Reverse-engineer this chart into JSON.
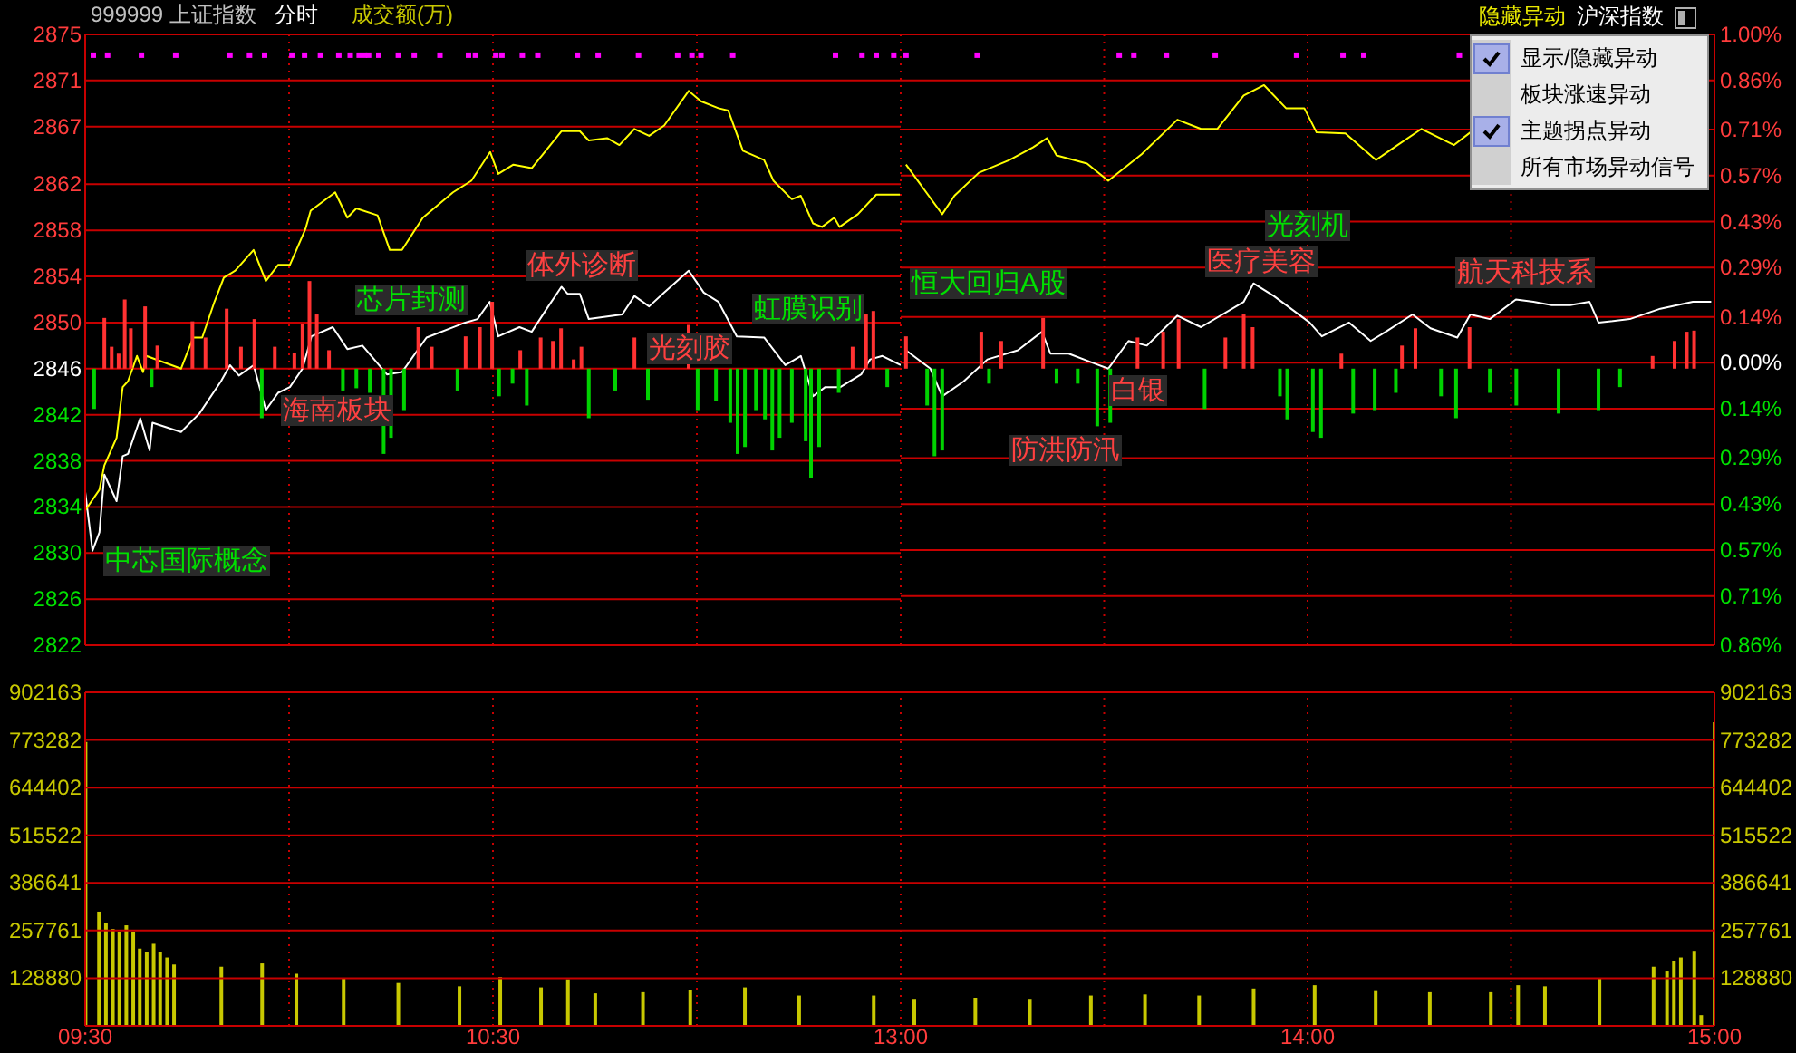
{
  "chart_data": [
    {
      "type": "line",
      "title": "999999 上证指数",
      "subtitle": "分时",
      "xlim": [
        9.5,
        11.5
      ],
      "xticks": [
        {
          "value": 9.5,
          "label": null
        },
        {
          "value": 10,
          "label": null
        },
        {
          "value": 10.5,
          "label": null
        },
        {
          "value": 11,
          "label": null
        },
        {
          "value": 11.5,
          "label": null
        }
      ],
      "ylim": [
        2822,
        2875
      ],
      "yticks": [
        2875,
        2871,
        2867,
        2862,
        2858,
        2854,
        2850,
        2846,
        2842,
        2838,
        2834,
        2830,
        2826,
        2822
      ],
      "tick_labels": "y",
      "grid": true,
      "series": [
        {
          "color": "#ffffff",
          "x": [
            9.5,
            9.518,
            9.535,
            9.547,
            9.577,
            9.592,
            9.605,
            9.635,
            9.658,
            9.665,
            9.735,
            9.78,
            9.833,
            9.855,
            9.877,
            9.913,
            9.943,
            9.973,
            10.002,
            10.033,
            10.055,
            10.107,
            10.143,
            10.18,
            10.24,
            10.277,
            10.337,
            10.432,
            10.462,
            10.492,
            10.513,
            10.565,
            10.595,
            10.632,
            10.668,
            10.683,
            10.713,
            10.735,
            10.817,
            10.847,
            10.883,
            10.92,
            10.98,
            11.017,
            11.053,
            11.098,
            11.165,
            11.217,
            11.255,
            11.285,
            11.315,
            11.352,
            11.403,
            11.425,
            11.455,
            11.5
          ],
          "values": [
            2835.3,
            2830.2,
            2831.8,
            2836.8,
            2834.5,
            2838.4,
            2838.6,
            2841.7,
            2838.9,
            2841.3,
            2840.5,
            2842.1,
            2844.9,
            2846.3,
            2845.4,
            2846.3,
            2842.4,
            2843.9,
            2844.4,
            2846,
            2848.8,
            2849.6,
            2847.7,
            2848,
            2845.5,
            2845.7,
            2848.7,
            2850,
            2850.3,
            2851.8,
            2848.8,
            2849.6,
            2849.2,
            2851.2,
            2853.1,
            2852.5,
            2852.5,
            2850.3,
            2850.7,
            2852.3,
            2851.4,
            2852.6,
            2854.5,
            2852.6,
            2851.8,
            2848.8,
            2848.7,
            2846.3,
            2847.1,
            2843.6,
            2844.4,
            2844.4,
            2845.5,
            2846.8,
            2847.1,
            2846.3
          ]
        },
        {
          "color": "#ffff00",
          "x": [
            9.5,
            9.535,
            9.547,
            9.577,
            9.592,
            9.605,
            9.627,
            9.642,
            9.65,
            9.735,
            9.765,
            9.787,
            9.817,
            9.84,
            9.868,
            9.913,
            9.943,
            9.973,
            10.002,
            10.04,
            10.053,
            10.113,
            10.143,
            10.165,
            10.217,
            10.247,
            10.277,
            10.328,
            10.402,
            10.447,
            10.493,
            10.513,
            10.55,
            10.595,
            10.668,
            10.713,
            10.735,
            10.78,
            10.81,
            10.847,
            10.883,
            10.92,
            10.98,
            11.01,
            11.053,
            11.077,
            11.113,
            11.165,
            11.188,
            11.233,
            11.255,
            11.285,
            11.307,
            11.337,
            11.35,
            11.395,
            11.44,
            11.498
          ],
          "values": [
            2833.7,
            2835.5,
            2837.6,
            2840,
            2844.4,
            2844.9,
            2847.1,
            2845.7,
            2847.1,
            2846,
            2848.7,
            2848.7,
            2851.8,
            2853.9,
            2854.5,
            2856.3,
            2853.6,
            2855,
            2855,
            2858.1,
            2859.7,
            2861.3,
            2859.1,
            2859.9,
            2859.3,
            2856.3,
            2856.3,
            2859.1,
            2861.3,
            2862.3,
            2864.8,
            2862.9,
            2863.7,
            2863.4,
            2866.6,
            2866.6,
            2865.8,
            2866,
            2865.4,
            2866.8,
            2866.2,
            2867.1,
            2870.1,
            2869.2,
            2868.6,
            2868.4,
            2864.9,
            2864.1,
            2862.3,
            2860.7,
            2861,
            2858.6,
            2858.3,
            2859.1,
            2858.3,
            2859.4,
            2861.1,
            2861.1
          ]
        },
        {
          "type": "bar",
          "color": "#ff3232",
          "x": [
            9.547,
            9.565,
            9.582,
            9.597,
            9.612,
            9.647,
            9.677,
            9.763,
            9.795,
            9.847,
            9.882,
            9.915,
            9.965,
            10.013,
            10.033,
            10.05,
            10.068,
            10.098,
            10.317,
            10.35,
            10.433,
            10.468,
            10.498,
            10.567,
            10.617,
            10.647,
            10.667,
            10.698,
            10.717,
            10.847,
            10.98,
            11.382,
            11.415,
            11.433
          ],
          "base": [
            2846,
            2846,
            2846,
            2846,
            2846,
            2846,
            2846,
            2846,
            2846,
            2846,
            2846,
            2846,
            2846,
            2846,
            2846,
            2846,
            2846,
            2846,
            2846,
            2846,
            2846,
            2846,
            2846,
            2846,
            2846,
            2846,
            2846,
            2846,
            2846,
            2846,
            2846,
            2846,
            2846,
            2846
          ],
          "values": [
            4.4,
            1.9,
            1.3,
            6,
            3.5,
            5.4,
            2,
            4.1,
            2.7,
            5.2,
            1.9,
            4.3,
            1.9,
            1.4,
            3.9,
            7.6,
            4.7,
            1.6,
            3.6,
            1.9,
            2.8,
            3.6,
            5.8,
            1.6,
            2.7,
            2.4,
            3.5,
            0.8,
            1.9,
            2.7,
            3.8,
            1.9,
            4.7,
            5
          ]
        },
        {
          "type": "bar",
          "color": "#00d200",
          "x": [
            9.522,
            9.663,
            9.933,
            10.132,
            10.165,
            10.198,
            10.232,
            10.25,
            10.282,
            10.413,
            10.515,
            10.548,
            10.583,
            10.735,
            10.8,
            10.88,
            11.002,
            11.047,
            11.082,
            11.1,
            11.118,
            11.145,
            11.167,
            11.185,
            11.203,
            11.233,
            11.267,
            11.28,
            11.3,
            11.348,
            11.467
          ],
          "base": [
            2846,
            2846,
            2846,
            2846,
            2846,
            2846,
            2846,
            2846,
            2846,
            2846,
            2846,
            2846,
            2846,
            2846,
            2846,
            2846,
            2846,
            2846,
            2846,
            2846,
            2846,
            2846,
            2846,
            2846,
            2846,
            2846,
            2846,
            2846,
            2846,
            2846,
            2846
          ],
          "values": [
            -3.5,
            -1.6,
            -4.3,
            -1.9,
            -1.7,
            -2.1,
            -7.4,
            -6,
            -3.6,
            -1.9,
            -2.4,
            -1.3,
            -3.2,
            -4.3,
            -1.9,
            -2.7,
            -3.6,
            -2.8,
            -4.7,
            -7.4,
            -6.8,
            -3.6,
            -4.4,
            -7.1,
            -6,
            -4.7,
            -6.3,
            -9.5,
            -6.8,
            -2.1,
            -1.6
          ]
        },
        {
          "type": "scatter",
          "color": "#ff00ff",
          "marker": "square",
          "x": [
            9.52,
            9.555,
            9.638,
            9.722,
            9.855,
            9.903,
            9.94,
            10.007,
            10.038,
            10.077,
            10.122,
            10.15,
            10.172,
            10.185,
            10.195,
            10.22,
            10.268,
            10.307,
            10.37,
            10.44,
            10.457,
            10.507,
            10.522,
            10.572,
            10.61,
            10.707,
            10.758,
            10.857,
            10.953,
            10.988,
            11.01,
            11.088,
            11.34,
            11.405,
            11.44,
            11.483
          ],
          "values": [
            2873.2,
            2873.2,
            2873.2,
            2873.2,
            2873.2,
            2873.2,
            2873.2,
            2873.2,
            2873.2,
            2873.2,
            2873.2,
            2873.2,
            2873.2,
            2873.2,
            2873.2,
            2873.2,
            2873.2,
            2873.2,
            2873.2,
            2873.2,
            2873.2,
            2873.2,
            2873.2,
            2873.2,
            2873.2,
            2873.2,
            2873.2,
            2873.2,
            2873.2,
            2873.2,
            2873.2,
            2873.2,
            2873.2,
            2873.2,
            2873.2,
            2873.2
          ]
        }
      ],
      "annotations": [
        "成交额(万)",
        "中芯国际概念",
        "海南板块",
        "芯片封测",
        "体外诊断",
        "光刻胶",
        "虹膜识别"
      ]
    },
    {
      "type": "line",
      "xlim": [
        13,
        15
      ],
      "xticks": [
        {
          "value": 13,
          "label": null
        },
        {
          "value": 13.5,
          "label": null
        },
        {
          "value": 14,
          "label": null
        },
        {
          "value": 14.5,
          "label": null
        },
        {
          "value": 15,
          "label": null
        }
      ],
      "ylim": [
        2822,
        2875
      ],
      "y2lim": [
        -0.86,
        1
      ],
      "y2ticks": [
        {
          "value": 1,
          "label": "1.00%"
        },
        {
          "value": 0.86,
          "label": "0.86%"
        },
        {
          "value": 0.71,
          "label": "0.71%"
        },
        {
          "value": 0.57,
          "label": "0.57%"
        },
        {
          "value": 0.43,
          "label": "0.43%"
        },
        {
          "value": 0.29,
          "label": "0.29%"
        },
        {
          "value": 0.14,
          "label": "0.14%"
        },
        {
          "value": 0,
          "label": "0.00%"
        },
        {
          "value": -0.14,
          "label": "0.14%"
        },
        {
          "value": -0.29,
          "label": "0.29%"
        },
        {
          "value": -0.43,
          "label": "0.43%"
        },
        {
          "value": -0.57,
          "label": "0.57%"
        },
        {
          "value": -0.71,
          "label": "0.71%"
        },
        {
          "value": -0.86,
          "label": "0.86%"
        }
      ],
      "tick_labels": "y",
      "grid": true,
      "series": [
        {
          "color": "#ffffff",
          "x": [
            13.013,
            13.073,
            13.102,
            13.155,
            13.213,
            13.288,
            13.347,
            13.368,
            13.413,
            13.472,
            13.51,
            13.56,
            13.605,
            13.68,
            13.738,
            13.843,
            13.867,
            13.917,
            14.005,
            14.035,
            14.102,
            14.155,
            14.192,
            14.258,
            14.302,
            14.368,
            14.4,
            14.448,
            14.512,
            14.555,
            14.6,
            14.645,
            14.693,
            14.715,
            14.792,
            14.867,
            14.947,
            14.992
          ],
          "values": [
            2847.6,
            2846,
            2843.6,
            2844.9,
            2846.8,
            2847.6,
            2849.2,
            2847.3,
            2847.3,
            2846.5,
            2846,
            2848.4,
            2848,
            2850.6,
            2849.6,
            2851.8,
            2853.4,
            2852.3,
            2850,
            2848.8,
            2850,
            2848.4,
            2849.2,
            2850.7,
            2849.5,
            2848.7,
            2850.7,
            2850.3,
            2852,
            2851.8,
            2851.5,
            2851.5,
            2851.8,
            2850,
            2850.3,
            2851.2,
            2851.8,
            2851.8
          ]
        },
        {
          "color": "#ffff00",
          "x": [
            13.013,
            13.102,
            13.132,
            13.192,
            13.267,
            13.325,
            13.36,
            13.383,
            13.458,
            13.51,
            13.592,
            13.68,
            13.738,
            13.778,
            13.843,
            13.893,
            13.947,
            13.992,
            14.022,
            14.093,
            14.168,
            14.213,
            14.28,
            14.36,
            14.4
          ],
          "values": [
            2863.7,
            2859.4,
            2861,
            2863,
            2864.1,
            2865.2,
            2866,
            2864.5,
            2863.8,
            2862.3,
            2864.6,
            2867.6,
            2866.8,
            2866.8,
            2869.7,
            2870.6,
            2868.6,
            2868.6,
            2866.5,
            2866.4,
            2864.1,
            2865.2,
            2866.8,
            2865.4,
            2866.5
          ]
        },
        {
          "type": "bar",
          "color": "#ff3232",
          "x": [
            13.013,
            13.198,
            13.247,
            13.35,
            13.582,
            13.645,
            13.683,
            13.798,
            13.843,
            13.865,
            14.083,
            14.232,
            14.265,
            14.398,
            14.848,
            14.902,
            14.932,
            14.95
          ],
          "base": [
            2846,
            2846,
            2846,
            2846,
            2846,
            2846,
            2846,
            2846,
            2846,
            2846,
            2846,
            2846,
            2846,
            2846,
            2846,
            2846,
            2846,
            2846
          ],
          "values": [
            2.8,
            3.2,
            2.4,
            4.4,
            2.7,
            3.2,
            4.3,
            2.7,
            4.7,
            3.6,
            1.3,
            2,
            3.5,
            3.6,
            1.1,
            2.4,
            3.2,
            3.3
          ]
        },
        {
          "type": "bar",
          "color": "#00d200",
          "x": [
            13.065,
            13.083,
            13.102,
            13.217,
            13.383,
            13.435,
            13.483,
            13.515,
            13.747,
            13.932,
            13.95,
            14.013,
            14.033,
            14.112,
            14.165,
            14.217,
            14.328,
            14.365,
            14.448,
            14.513,
            14.617,
            14.715,
            14.768
          ],
          "base": [
            2846,
            2846,
            2846,
            2846,
            2846,
            2846,
            2846,
            2846,
            2846,
            2846,
            2846,
            2846,
            2846,
            2846,
            2846,
            2846,
            2846,
            2846,
            2846,
            2846,
            2846,
            2846,
            2846
          ],
          "values": [
            -3.2,
            -7.6,
            -7.1,
            -1.3,
            -1.3,
            -1.3,
            -5,
            -4.7,
            -3.5,
            -2.4,
            -4.4,
            -5.5,
            -6,
            -3.9,
            -3.6,
            -2.1,
            -2.4,
            -4.3,
            -2.1,
            -3.2,
            -3.9,
            -3.6,
            -1.6
          ]
        },
        {
          "type": "scatter",
          "color": "#ff00ff",
          "marker": "square",
          "x": [
            13.013,
            13.188,
            13.537,
            13.573,
            13.653,
            13.773,
            13.973,
            14.087,
            14.138,
            14.373
          ],
          "values": [
            2873.2,
            2873.2,
            2873.2,
            2873.2,
            2873.2,
            2873.2,
            2873.2,
            2873.2,
            2873.2,
            2873.2
          ]
        }
      ],
      "annotations": [
        "恒大回归A股",
        "防洪防汛",
        "白银",
        "医疗美容",
        "光刻机",
        "航天科技系",
        "隐藏异动",
        "沪深指数",
        "显示/隐藏异动",
        "板块涨速异动",
        "主题拐点异动",
        "所有市场异动信号"
      ]
    },
    {
      "type": "bar",
      "color": "#c8c800",
      "x": [
        9.5,
        9.533,
        9.55,
        9.567,
        9.583,
        9.6,
        9.617,
        9.633,
        9.65,
        9.667,
        9.683,
        9.7,
        9.717,
        9.833,
        9.933,
        10.017,
        10.133,
        10.267,
        10.417,
        10.517,
        10.617,
        10.683,
        10.75,
        10.867,
        10.983,
        11.117,
        11.25,
        11.433
      ],
      "values": [
        768000,
        309000,
        278000,
        262000,
        253000,
        272000,
        253000,
        209000,
        200000,
        222000,
        200000,
        185000,
        166000,
        160000,
        169000,
        141000,
        129000,
        116000,
        107000,
        132000,
        104000,
        126000,
        88000,
        91000,
        98000,
        104000,
        82000,
        82000
      ],
      "xlim": [
        9.5,
        11.5
      ],
      "xticks": [
        {
          "value": 9.5,
          "label": "09:30"
        },
        {
          "value": 10,
          "label": null
        },
        {
          "value": 10.5,
          "label": "10:30"
        },
        {
          "value": 11,
          "label": null
        }
      ],
      "ylim": [
        0,
        902163
      ],
      "yticks": [
        128880,
        257761,
        386641,
        515522,
        644402,
        773282,
        902163
      ],
      "grid": true
    },
    {
      "type": "bar",
      "color": "#c8c800",
      "x": [
        13.033,
        13.183,
        13.317,
        13.467,
        13.6,
        13.733,
        13.867,
        14.017,
        14.167,
        14.3,
        14.45,
        14.517,
        14.583,
        14.717,
        14.85,
        14.883,
        14.9,
        14.917,
        14.95,
        14.967,
        15
      ],
      "values": [
        73000,
        76000,
        73000,
        82000,
        85000,
        82000,
        101000,
        110000,
        94000,
        91000,
        91000,
        110000,
        107000,
        129000,
        160000,
        147000,
        175000,
        185000,
        203000,
        29000,
        821000
      ],
      "xlim": [
        13,
        15
      ],
      "xticks": [
        {
          "value": 13,
          "label": "13:00"
        },
        {
          "value": 13.5,
          "label": null
        },
        {
          "value": 14,
          "label": "14:00"
        },
        {
          "value": 14.5,
          "label": null
        },
        {
          "value": 15,
          "label": "15:00"
        }
      ],
      "ylim": [
        0,
        902163
      ],
      "yticks": [
        128880,
        257761,
        386641,
        515522,
        644402,
        773282,
        902163
      ],
      "grid": true
    }
  ]
}
